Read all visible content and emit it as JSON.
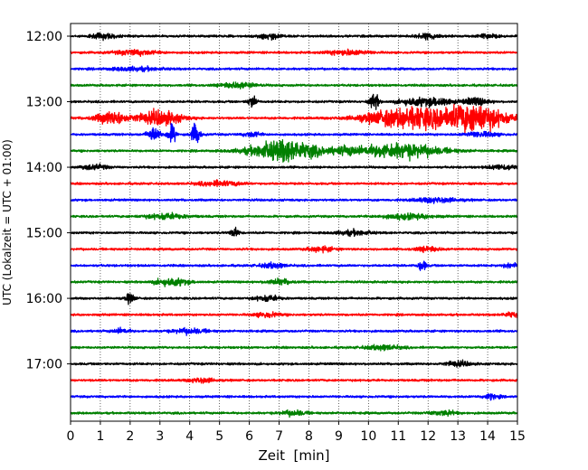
{
  "chart_data": {
    "type": "line",
    "title": "",
    "xlabel": "Zeit  [min]",
    "ylabel": "UTC (Lokalzeit = UTC + 01:00)",
    "x_ticks": [
      "0",
      "1",
      "2",
      "3",
      "4",
      "5",
      "6",
      "7",
      "8",
      "9",
      "10",
      "11",
      "12",
      "13",
      "14",
      "15"
    ],
    "xlim": [
      0,
      15
    ],
    "y_ticks": [
      "12:00",
      "13:00",
      "14:00",
      "15:00",
      "16:00",
      "17:00"
    ],
    "grid": "vertical dotted at each minute",
    "line_colors": [
      "#000000",
      "#ff0000",
      "#0000ff",
      "#008000"
    ],
    "trace_count": 24,
    "trace_interval_minutes": 15,
    "traces": [
      {
        "start": "12:00",
        "color": "#000000",
        "events": [
          [
            1.1,
            0.3,
            2
          ],
          [
            6.7,
            0.3,
            2
          ],
          [
            12.0,
            0.3,
            2
          ],
          [
            14.0,
            0.2,
            2
          ]
        ]
      },
      {
        "start": "12:15",
        "color": "#ff0000",
        "events": [
          [
            2.2,
            0.5,
            2
          ],
          [
            9.3,
            0.5,
            2
          ]
        ]
      },
      {
        "start": "12:30",
        "color": "#0000ff",
        "events": [
          [
            2.2,
            0.6,
            1.5
          ]
        ]
      },
      {
        "start": "12:45",
        "color": "#008000",
        "events": [
          [
            5.6,
            0.4,
            2.5
          ]
        ]
      },
      {
        "start": "13:00",
        "color": "#000000",
        "events": [
          [
            6.1,
            0.1,
            5
          ],
          [
            10.2,
            0.1,
            7
          ],
          [
            11.6,
            0.4,
            3
          ],
          [
            12.4,
            0.3,
            3
          ],
          [
            13.6,
            0.3,
            3
          ]
        ]
      },
      {
        "start": "13:15",
        "color": "#ff0000",
        "events": [
          [
            1.4,
            0.4,
            5
          ],
          [
            3.0,
            0.5,
            6
          ],
          [
            11.4,
            1.0,
            9
          ],
          [
            13.6,
            0.7,
            11
          ]
        ]
      },
      {
        "start": "13:30",
        "color": "#0000ff",
        "events": [
          [
            2.8,
            0.15,
            6
          ],
          [
            3.4,
            0.1,
            8
          ],
          [
            4.2,
            0.1,
            9
          ],
          [
            6.1,
            0.2,
            2
          ],
          [
            13.8,
            0.4,
            2
          ]
        ]
      },
      {
        "start": "13:45",
        "color": "#008000",
        "events": [
          [
            7.2,
            0.8,
            9
          ],
          [
            11.0,
            1.0,
            6
          ],
          [
            9.2,
            0.3,
            2
          ]
        ]
      },
      {
        "start": "14:00",
        "color": "#000000",
        "events": [
          [
            0.8,
            0.3,
            2
          ],
          [
            14.5,
            0.3,
            2
          ]
        ]
      },
      {
        "start": "14:15",
        "color": "#ff0000",
        "events": [
          [
            5.0,
            0.5,
            2
          ]
        ]
      },
      {
        "start": "14:30",
        "color": "#0000ff",
        "events": [
          [
            12.3,
            0.5,
            2
          ]
        ]
      },
      {
        "start": "14:45",
        "color": "#008000",
        "events": [
          [
            3.2,
            0.5,
            2
          ],
          [
            11.3,
            0.6,
            2
          ]
        ]
      },
      {
        "start": "15:00",
        "color": "#000000",
        "events": [
          [
            5.5,
            0.1,
            4
          ],
          [
            9.5,
            0.4,
            2
          ]
        ]
      },
      {
        "start": "15:15",
        "color": "#ff0000",
        "events": [
          [
            8.4,
            0.3,
            2
          ],
          [
            12.0,
            0.3,
            2
          ]
        ]
      },
      {
        "start": "15:30",
        "color": "#0000ff",
        "events": [
          [
            6.8,
            0.3,
            2
          ],
          [
            11.8,
            0.1,
            4
          ],
          [
            14.8,
            0.2,
            2
          ]
        ]
      },
      {
        "start": "15:45",
        "color": "#008000",
        "events": [
          [
            3.4,
            0.4,
            3
          ],
          [
            7.0,
            0.3,
            2
          ]
        ]
      },
      {
        "start": "16:00",
        "color": "#000000",
        "events": [
          [
            2.0,
            0.1,
            4
          ],
          [
            6.6,
            0.3,
            2
          ]
        ]
      },
      {
        "start": "16:15",
        "color": "#ff0000",
        "events": [
          [
            6.6,
            0.3,
            2
          ],
          [
            14.8,
            0.2,
            2
          ]
        ]
      },
      {
        "start": "16:30",
        "color": "#0000ff",
        "events": [
          [
            1.7,
            0.2,
            2
          ],
          [
            4.0,
            0.4,
            2
          ]
        ]
      },
      {
        "start": "16:45",
        "color": "#008000",
        "events": [
          [
            10.5,
            0.4,
            2
          ]
        ]
      },
      {
        "start": "17:00",
        "color": "#000000",
        "events": [
          [
            13.0,
            0.3,
            2
          ]
        ]
      },
      {
        "start": "17:15",
        "color": "#ff0000",
        "events": [
          [
            4.4,
            0.3,
            2
          ]
        ]
      },
      {
        "start": "17:30",
        "color": "#0000ff",
        "events": [
          [
            14.1,
            0.2,
            2
          ]
        ]
      },
      {
        "start": "17:45",
        "color": "#008000",
        "events": [
          [
            7.5,
            0.3,
            2
          ],
          [
            12.5,
            0.3,
            2
          ]
        ]
      }
    ]
  }
}
